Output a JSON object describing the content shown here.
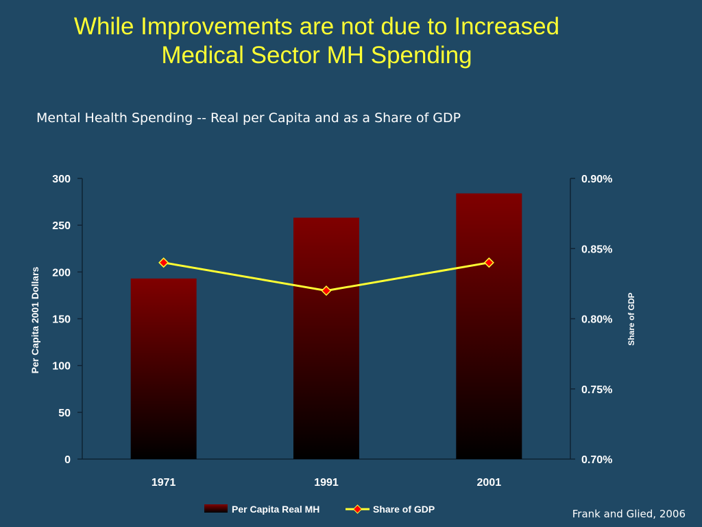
{
  "slide": {
    "title_line1": "While Improvements are not due to Increased",
    "title_line2": "Medical Sector MH Spending",
    "source": "Frank and Glied, 2006"
  },
  "chart_data": {
    "type": "bar",
    "title": "Mental Health Spending -- Real per Capita and as a Share of GDP",
    "categories": [
      "1971",
      "1991",
      "2001"
    ],
    "series": [
      {
        "name": "Per Capita Real MH",
        "type": "bar",
        "axis": "left",
        "values": [
          193,
          258,
          284
        ],
        "color_top": "#800000",
        "color_bottom": "#000000"
      },
      {
        "name": "Share of GDP",
        "type": "line",
        "axis": "right",
        "values": [
          0.0084,
          0.0082,
          0.0084
        ],
        "line_color": "#ffff33",
        "marker_color": "#ff0000"
      }
    ],
    "ylabel": "Per Capita 2001 Dollars",
    "y2label": "Share of GDP",
    "ylim": [
      0,
      300
    ],
    "yticks": [
      0,
      50,
      100,
      150,
      200,
      250,
      300
    ],
    "y2lim": [
      0.007,
      0.009
    ],
    "y2ticks": [
      0.007,
      0.0075,
      0.008,
      0.0085,
      0.009
    ],
    "y2tick_labels": [
      "0.70%",
      "0.75%",
      "0.80%",
      "0.85%",
      "0.90%"
    ],
    "grid": false,
    "legend": "bottom"
  }
}
